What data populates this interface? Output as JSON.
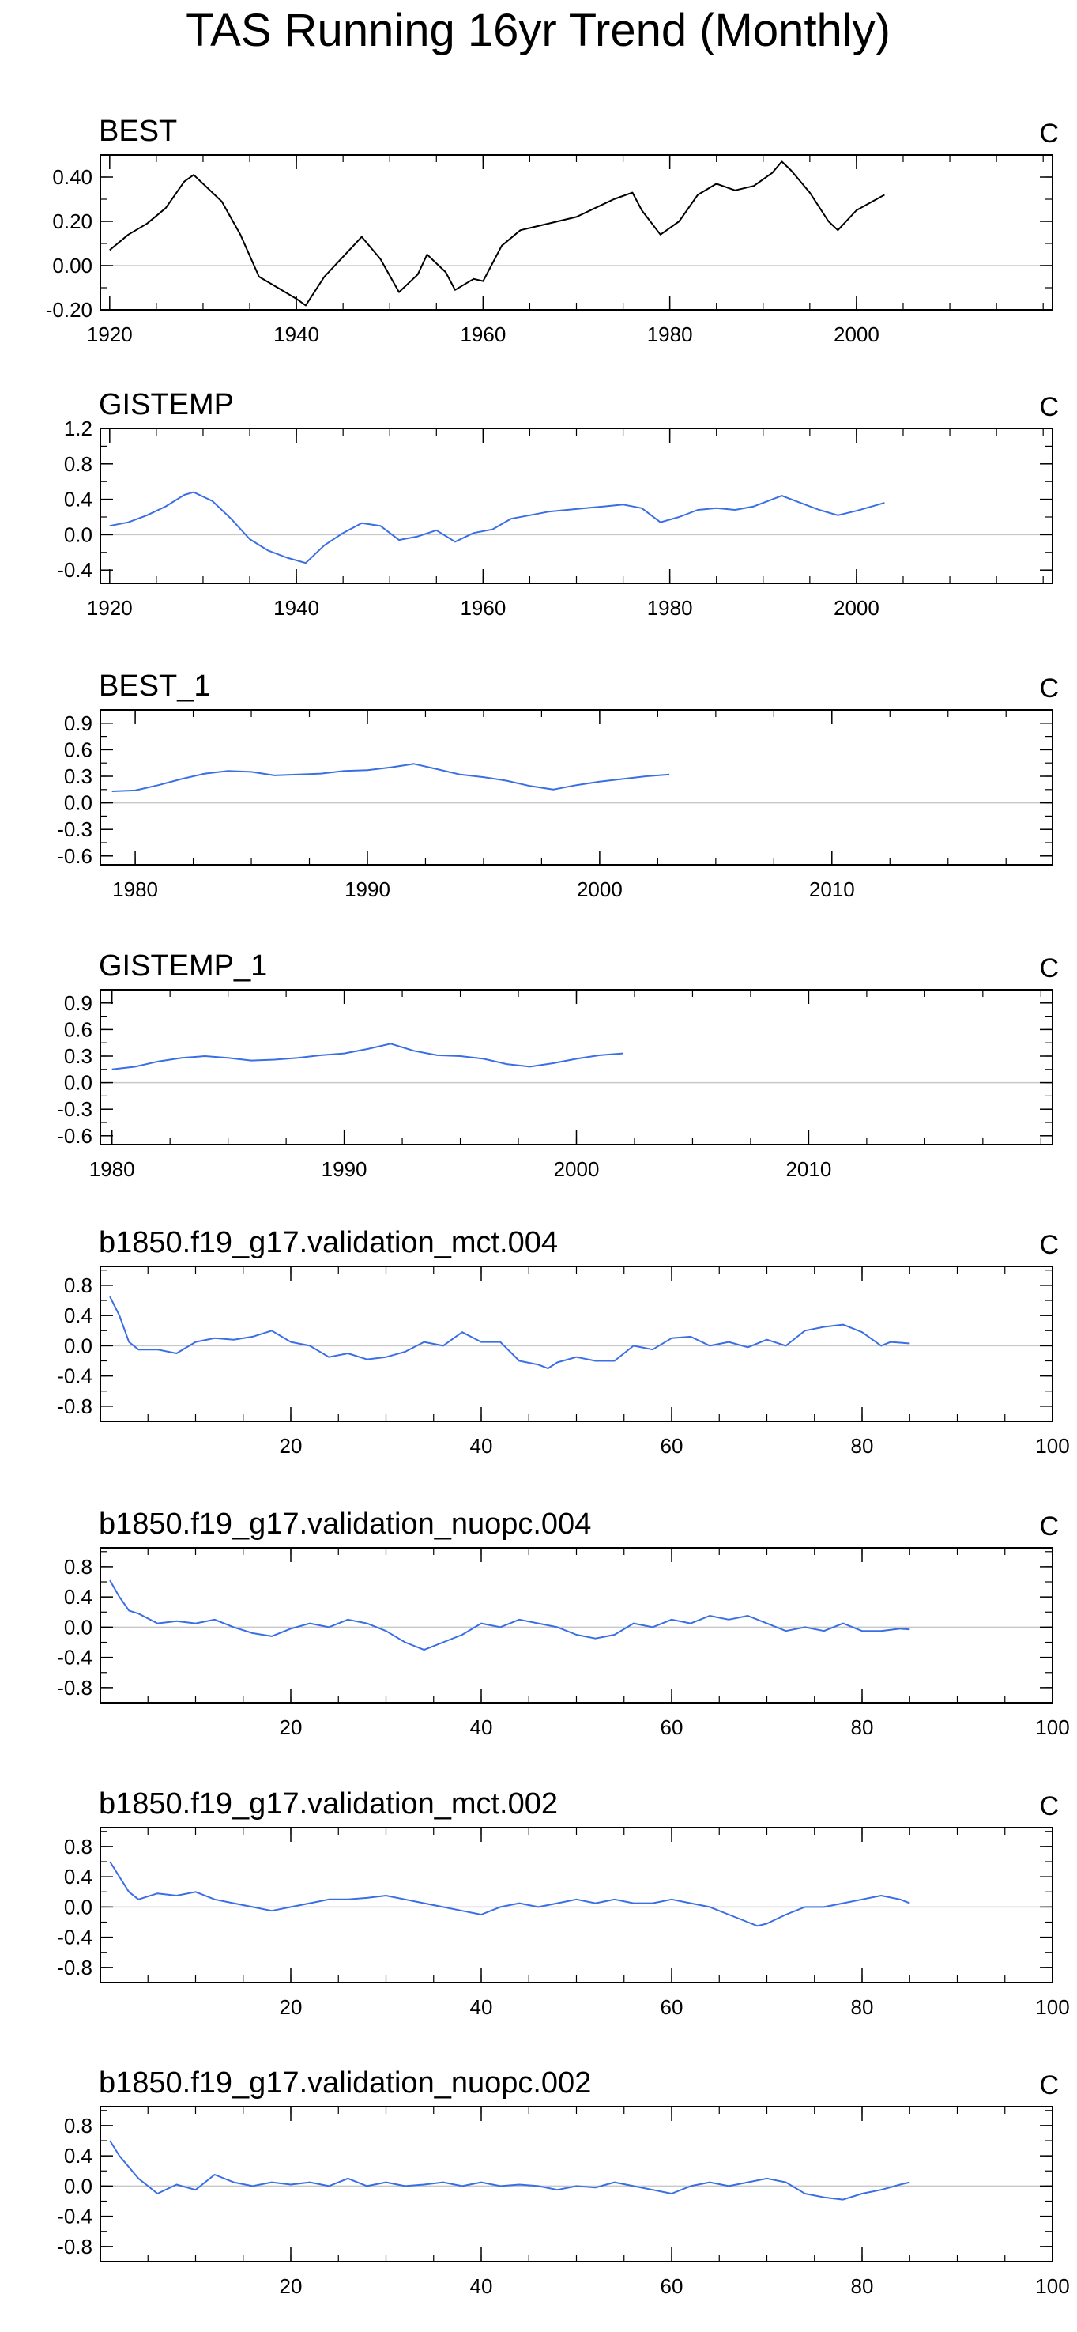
{
  "figure_title": "TAS Running 16yr Trend (Monthly)",
  "colors": {
    "black_line": "#000000",
    "blue_line": "#3a6ee6",
    "zero_line": "#c8c8c8",
    "frame": "#000000"
  },
  "chart_data": [
    {
      "type": "line",
      "title": "BEST",
      "unit": "C",
      "color": "#000000",
      "xlim": [
        1919,
        2021
      ],
      "ylim": [
        -0.2,
        0.5
      ],
      "xticks": [
        1920,
        1940,
        1960,
        1980,
        2000
      ],
      "xtick_labels": [
        "1920",
        "1940",
        "1960",
        "1980",
        "2000"
      ],
      "yticks": [
        -0.2,
        0.0,
        0.2,
        0.4
      ],
      "ytick_labels": [
        "-0.20",
        "0.00",
        "0.20",
        "0.40"
      ],
      "x": [
        1920,
        1922,
        1924,
        1926,
        1928,
        1929,
        1932,
        1934,
        1936,
        1938,
        1940,
        1941,
        1943,
        1945,
        1947,
        1949,
        1951,
        1953,
        1954,
        1956,
        1957,
        1959,
        1960,
        1962,
        1964,
        1966,
        1968,
        1970,
        1972,
        1974,
        1976,
        1977,
        1979,
        1981,
        1983,
        1985,
        1987,
        1989,
        1991,
        1992,
        1993,
        1995,
        1997,
        1998,
        2000,
        2003
      ],
      "y": [
        0.07,
        0.14,
        0.19,
        0.26,
        0.38,
        0.41,
        0.29,
        0.14,
        -0.05,
        -0.1,
        -0.15,
        -0.18,
        -0.05,
        0.04,
        0.13,
        0.03,
        -0.12,
        -0.04,
        0.05,
        -0.03,
        -0.11,
        -0.06,
        -0.07,
        0.09,
        0.16,
        0.18,
        0.2,
        0.22,
        0.26,
        0.3,
        0.33,
        0.25,
        0.14,
        0.2,
        0.32,
        0.37,
        0.34,
        0.36,
        0.42,
        0.47,
        0.43,
        0.33,
        0.2,
        0.16,
        0.25,
        0.32
      ]
    },
    {
      "type": "line",
      "title": "GISTEMP",
      "unit": "C",
      "color": "#3a6ee6",
      "xlim": [
        1919,
        2021
      ],
      "ylim": [
        -0.55,
        1.2
      ],
      "xticks": [
        1920,
        1940,
        1960,
        1980,
        2000
      ],
      "xtick_labels": [
        "1920",
        "1940",
        "1960",
        "1980",
        "2000"
      ],
      "yticks": [
        -0.4,
        0.0,
        0.4,
        0.8,
        1.2
      ],
      "ytick_labels": [
        "-0.4",
        "0.0",
        "0.4",
        "0.8",
        "1.2"
      ],
      "x": [
        1920,
        1922,
        1924,
        1926,
        1928,
        1929,
        1931,
        1933,
        1935,
        1937,
        1939,
        1941,
        1943,
        1945,
        1947,
        1949,
        1951,
        1953,
        1955,
        1957,
        1959,
        1961,
        1963,
        1965,
        1967,
        1969,
        1971,
        1973,
        1975,
        1977,
        1979,
        1981,
        1983,
        1985,
        1987,
        1989,
        1991,
        1992,
        1994,
        1996,
        1998,
        2000,
        2003
      ],
      "y": [
        0.1,
        0.14,
        0.22,
        0.32,
        0.45,
        0.48,
        0.38,
        0.18,
        -0.05,
        -0.18,
        -0.26,
        -0.32,
        -0.12,
        0.02,
        0.13,
        0.1,
        -0.06,
        -0.02,
        0.05,
        -0.08,
        0.02,
        0.06,
        0.18,
        0.22,
        0.26,
        0.28,
        0.3,
        0.32,
        0.34,
        0.3,
        0.14,
        0.2,
        0.28,
        0.3,
        0.28,
        0.32,
        0.4,
        0.44,
        0.36,
        0.28,
        0.22,
        0.27,
        0.36
      ]
    },
    {
      "type": "line",
      "title": "BEST_1",
      "unit": "C",
      "color": "#3a6ee6",
      "xlim": [
        1978.5,
        2019.5
      ],
      "ylim": [
        -0.7,
        1.05
      ],
      "xticks": [
        1980,
        1990,
        2000,
        2010
      ],
      "xtick_labels": [
        "1980",
        "1990",
        "2000",
        "2010"
      ],
      "yticks": [
        -0.6,
        -0.3,
        0.0,
        0.3,
        0.6,
        0.9
      ],
      "ytick_labels": [
        "-0.6",
        "-0.3",
        "0.0",
        "0.3",
        "0.6",
        "0.9"
      ],
      "x": [
        1979,
        1980,
        1981,
        1982,
        1983,
        1984,
        1985,
        1986,
        1987,
        1988,
        1989,
        1990,
        1991,
        1992,
        1993,
        1994,
        1995,
        1996,
        1997,
        1998,
        1999,
        2000,
        2001,
        2002,
        2003
      ],
      "y": [
        0.13,
        0.14,
        0.2,
        0.27,
        0.33,
        0.36,
        0.35,
        0.31,
        0.32,
        0.33,
        0.36,
        0.37,
        0.4,
        0.44,
        0.38,
        0.32,
        0.29,
        0.25,
        0.19,
        0.15,
        0.2,
        0.24,
        0.27,
        0.3,
        0.32
      ]
    },
    {
      "type": "line",
      "title": "GISTEMP_1",
      "unit": "C",
      "color": "#3a6ee6",
      "xlim": [
        1979.5,
        2020.5
      ],
      "ylim": [
        -0.7,
        1.05
      ],
      "xticks": [
        1980,
        1990,
        2000,
        2010
      ],
      "xtick_labels": [
        "1980",
        "1990",
        "2000",
        "2010"
      ],
      "yticks": [
        -0.6,
        -0.3,
        0.0,
        0.3,
        0.6,
        0.9
      ],
      "ytick_labels": [
        "-0.6",
        "-0.3",
        "0.0",
        "0.3",
        "0.6",
        "0.9"
      ],
      "x": [
        1980,
        1981,
        1982,
        1983,
        1984,
        1985,
        1986,
        1987,
        1988,
        1989,
        1990,
        1991,
        1992,
        1993,
        1994,
        1995,
        1996,
        1997,
        1998,
        1999,
        2000,
        2001,
        2002
      ],
      "y": [
        0.15,
        0.18,
        0.24,
        0.28,
        0.3,
        0.28,
        0.25,
        0.26,
        0.28,
        0.31,
        0.33,
        0.38,
        0.44,
        0.36,
        0.31,
        0.3,
        0.27,
        0.21,
        0.18,
        0.22,
        0.27,
        0.31,
        0.33
      ]
    },
    {
      "type": "line",
      "title": "b1850.f19_g17.validation_mct.004",
      "unit": "C",
      "color": "#3a6ee6",
      "xlim": [
        0,
        100
      ],
      "ylim": [
        -1.0,
        1.05
      ],
      "xticks": [
        20,
        40,
        60,
        80,
        100
      ],
      "xtick_labels": [
        "20",
        "40",
        "60",
        "80",
        "100"
      ],
      "yticks": [
        -0.8,
        -0.4,
        0.0,
        0.4,
        0.8
      ],
      "ytick_labels": [
        "-0.8",
        "-0.4",
        "0.0",
        "0.4",
        "0.8"
      ],
      "x": [
        1,
        2,
        3,
        4,
        6,
        8,
        10,
        12,
        14,
        16,
        18,
        20,
        22,
        24,
        26,
        28,
        30,
        32,
        34,
        36,
        38,
        40,
        42,
        44,
        46,
        47,
        48,
        50,
        52,
        54,
        56,
        58,
        60,
        62,
        64,
        66,
        68,
        70,
        72,
        74,
        76,
        78,
        80,
        82,
        83,
        85
      ],
      "y": [
        0.65,
        0.4,
        0.05,
        -0.05,
        -0.05,
        -0.1,
        0.05,
        0.1,
        0.08,
        0.12,
        0.2,
        0.05,
        0.0,
        -0.15,
        -0.1,
        -0.18,
        -0.15,
        -0.08,
        0.05,
        0.0,
        0.18,
        0.05,
        0.05,
        -0.2,
        -0.25,
        -0.3,
        -0.22,
        -0.15,
        -0.2,
        -0.2,
        0.0,
        -0.05,
        0.1,
        0.12,
        0.0,
        0.05,
        -0.02,
        0.08,
        0.0,
        0.2,
        0.25,
        0.28,
        0.18,
        0.0,
        0.05,
        0.03
      ]
    },
    {
      "type": "line",
      "title": "b1850.f19_g17.validation_nuopc.004",
      "unit": "C",
      "color": "#3a6ee6",
      "xlim": [
        0,
        100
      ],
      "ylim": [
        -1.0,
        1.05
      ],
      "xticks": [
        20,
        40,
        60,
        80,
        100
      ],
      "xtick_labels": [
        "20",
        "40",
        "60",
        "80",
        "100"
      ],
      "yticks": [
        -0.8,
        -0.4,
        0.0,
        0.4,
        0.8
      ],
      "ytick_labels": [
        "-0.8",
        "-0.4",
        "0.0",
        "0.4",
        "0.8"
      ],
      "x": [
        1,
        2,
        3,
        4,
        6,
        8,
        10,
        12,
        14,
        16,
        18,
        20,
        22,
        24,
        26,
        28,
        30,
        32,
        34,
        36,
        38,
        40,
        42,
        44,
        46,
        48,
        50,
        52,
        54,
        56,
        58,
        60,
        62,
        64,
        66,
        68,
        70,
        72,
        74,
        76,
        78,
        80,
        82,
        84,
        85
      ],
      "y": [
        0.62,
        0.4,
        0.22,
        0.18,
        0.05,
        0.08,
        0.05,
        0.1,
        0.0,
        -0.08,
        -0.12,
        -0.02,
        0.05,
        0.0,
        0.1,
        0.05,
        -0.05,
        -0.2,
        -0.3,
        -0.2,
        -0.1,
        0.05,
        0.0,
        0.1,
        0.05,
        0.0,
        -0.1,
        -0.15,
        -0.1,
        0.05,
        0.0,
        0.1,
        0.05,
        0.15,
        0.1,
        0.15,
        0.05,
        -0.05,
        0.0,
        -0.05,
        0.05,
        -0.05,
        -0.05,
        -0.02,
        -0.03
      ]
    },
    {
      "type": "line",
      "title": "b1850.f19_g17.validation_mct.002",
      "unit": "C",
      "color": "#3a6ee6",
      "xlim": [
        0,
        100
      ],
      "ylim": [
        -1.0,
        1.05
      ],
      "xticks": [
        20,
        40,
        60,
        80,
        100
      ],
      "xtick_labels": [
        "20",
        "40",
        "60",
        "80",
        "100"
      ],
      "yticks": [
        -0.8,
        -0.4,
        0.0,
        0.4,
        0.8
      ],
      "ytick_labels": [
        "-0.8",
        "-0.4",
        "0.0",
        "0.4",
        "0.8"
      ],
      "x": [
        1,
        2,
        3,
        4,
        6,
        8,
        10,
        12,
        14,
        16,
        18,
        20,
        22,
        24,
        26,
        28,
        30,
        32,
        34,
        36,
        38,
        40,
        42,
        44,
        46,
        48,
        50,
        52,
        54,
        56,
        58,
        60,
        62,
        64,
        66,
        68,
        69,
        70,
        72,
        74,
        76,
        78,
        80,
        82,
        84,
        85
      ],
      "y": [
        0.6,
        0.4,
        0.2,
        0.1,
        0.18,
        0.15,
        0.2,
        0.1,
        0.05,
        0.0,
        -0.05,
        0.0,
        0.05,
        0.1,
        0.1,
        0.12,
        0.15,
        0.1,
        0.05,
        0.0,
        -0.05,
        -0.1,
        0.0,
        0.05,
        0.0,
        0.05,
        0.1,
        0.05,
        0.1,
        0.05,
        0.05,
        0.1,
        0.05,
        0.0,
        -0.1,
        -0.2,
        -0.25,
        -0.22,
        -0.1,
        0.0,
        0.0,
        0.05,
        0.1,
        0.15,
        0.1,
        0.05
      ]
    },
    {
      "type": "line",
      "title": "b1850.f19_g17.validation_nuopc.002",
      "unit": "C",
      "color": "#3a6ee6",
      "xlim": [
        0,
        100
      ],
      "ylim": [
        -1.0,
        1.05
      ],
      "xticks": [
        20,
        40,
        60,
        80,
        100
      ],
      "xtick_labels": [
        "20",
        "40",
        "60",
        "80",
        "100"
      ],
      "yticks": [
        -0.8,
        -0.4,
        0.0,
        0.4,
        0.8
      ],
      "ytick_labels": [
        "-0.8",
        "-0.4",
        "0.0",
        "0.4",
        "0.8"
      ],
      "x": [
        1,
        2,
        3,
        4,
        5,
        6,
        8,
        10,
        12,
        14,
        16,
        18,
        20,
        22,
        24,
        26,
        28,
        30,
        32,
        34,
        36,
        38,
        40,
        42,
        44,
        46,
        48,
        50,
        52,
        54,
        56,
        58,
        60,
        62,
        64,
        66,
        68,
        70,
        72,
        74,
        76,
        78,
        80,
        82,
        84,
        85
      ],
      "y": [
        0.6,
        0.4,
        0.25,
        0.1,
        0.0,
        -0.1,
        0.02,
        -0.05,
        0.15,
        0.05,
        0.0,
        0.05,
        0.02,
        0.05,
        0.0,
        0.1,
        0.0,
        0.05,
        0.0,
        0.02,
        0.05,
        0.0,
        0.05,
        0.0,
        0.02,
        0.0,
        -0.05,
        0.0,
        -0.02,
        0.05,
        0.0,
        -0.05,
        -0.1,
        0.0,
        0.05,
        0.0,
        0.05,
        0.1,
        0.05,
        -0.1,
        -0.15,
        -0.18,
        -0.1,
        -0.05,
        0.02,
        0.05
      ]
    }
  ]
}
